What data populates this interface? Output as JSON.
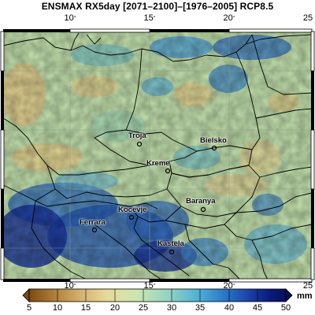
{
  "title": "ENSMAX RX5day [2071–2100]–[1976–2005] RCP8.5",
  "lon_ticks": [
    "10",
    "15",
    "20",
    "25"
  ],
  "colorbar": {
    "ticks": [
      "5",
      "10",
      "15",
      "20",
      "25",
      "30",
      "35",
      "40",
      "45",
      "50"
    ],
    "unit": "mm",
    "range": [
      5,
      50
    ],
    "colors": [
      "#7a4a14",
      "#b07f3a",
      "#d6b070",
      "#e8d89a",
      "#cde6b0",
      "#8fd1c2",
      "#4fb0d6",
      "#2a78c8",
      "#1a3fa6",
      "#0a1a7a",
      "#08105a"
    ]
  },
  "cities": [
    {
      "name": "Troja"
    },
    {
      "name": "Bielsko"
    },
    {
      "name": "Kreme"
    },
    {
      "name": "Kocevje"
    },
    {
      "name": "Baranya"
    },
    {
      "name": "Ferrara"
    },
    {
      "name": "Kastela"
    }
  ],
  "colors": {
    "land_base": "#bfe0a8",
    "sea_high": "#1a3fa6",
    "border": "#000000"
  }
}
